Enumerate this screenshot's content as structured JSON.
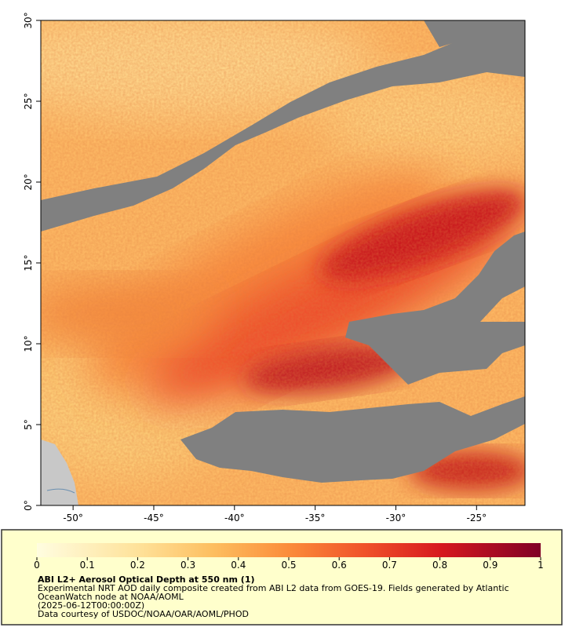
{
  "map": {
    "xlim": [
      -52,
      -22
    ],
    "ylim": [
      0,
      30
    ],
    "xticks": [
      {
        "value": -50,
        "label": "-50°"
      },
      {
        "value": -45,
        "label": "-45°"
      },
      {
        "value": -40,
        "label": "-40°"
      },
      {
        "value": -35,
        "label": "-35°"
      },
      {
        "value": -30,
        "label": "-30°"
      },
      {
        "value": -25,
        "label": "-25°"
      }
    ],
    "yticks": [
      {
        "value": 0,
        "label": "0°"
      },
      {
        "value": 5,
        "label": "5°"
      },
      {
        "value": 10,
        "label": "10°"
      },
      {
        "value": 15,
        "label": "15°"
      },
      {
        "value": 20,
        "label": "20°"
      },
      {
        "value": 25,
        "label": "25°"
      },
      {
        "value": 30,
        "label": "30°"
      }
    ]
  },
  "colorbar": {
    "lim": [
      0,
      1
    ],
    "ticks": [
      0,
      0.1,
      0.2,
      0.3,
      0.4,
      0.5,
      0.6,
      0.7,
      0.8,
      0.9,
      1
    ]
  },
  "caption": {
    "title": "ABI L2+ Aerosol Optical Depth at 550 nm (1)",
    "lines": [
      "Experimental NRT AOD daily composite created from ABI L2 data from GOES-19. Fields generated by Atlantic",
      "OceanWatch node at NOAA/AOML",
      "(2025-06-12T00:00:00Z)",
      "Data courtesy of USDOC/NOAA/OAR/AOML/PHOD"
    ]
  }
}
